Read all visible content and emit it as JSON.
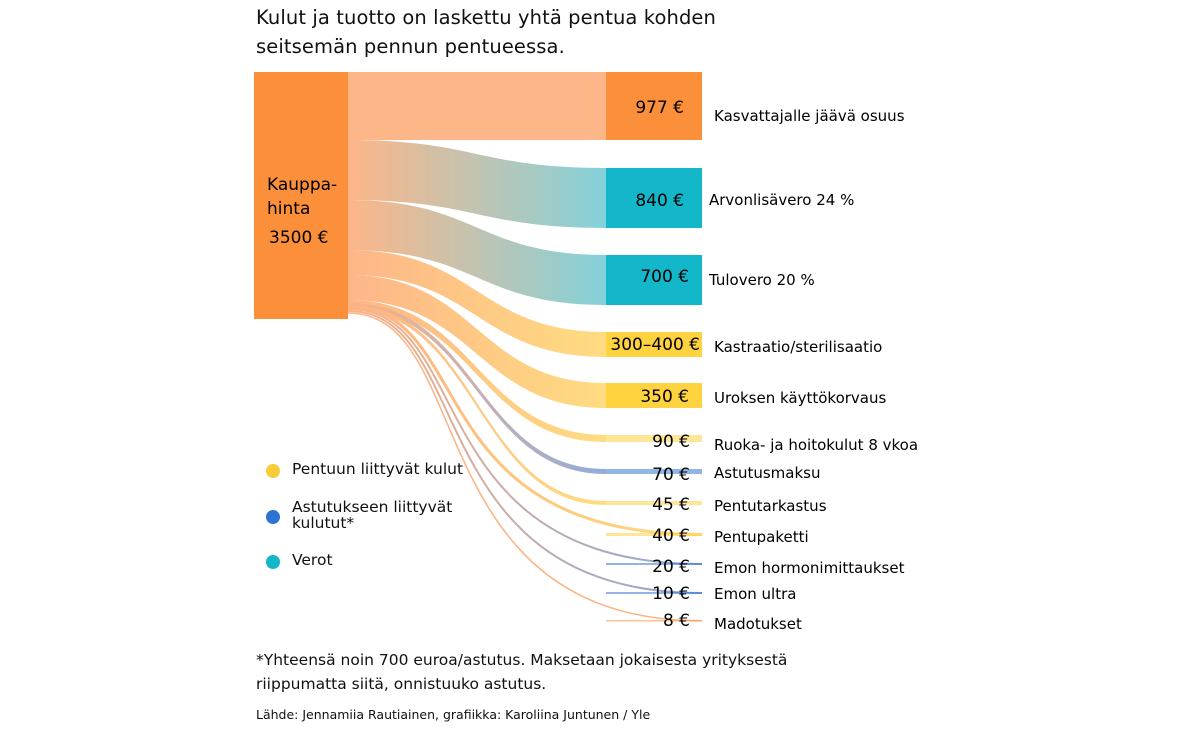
{
  "title": "Kulut ja tuotto on laskettu yhtä pentua kohden seitsemän pennun pentueessa.",
  "chart_data": {
    "type": "sankey",
    "source": {
      "label_line1": "Kauppa-",
      "label_line2": "hinta",
      "value_label": "3500 €",
      "value": 3500
    },
    "flows": [
      {
        "label": "Kasvattajalle jäävä osuus",
        "value_label": "977 €",
        "value": 977,
        "category": "remainder"
      },
      {
        "label": "Arvonlisävero 24 %",
        "value_label": "840 €",
        "value": 840,
        "category": "tax"
      },
      {
        "label": "Tulovero 20 %",
        "value_label": "700 €",
        "value": 700,
        "category": "tax"
      },
      {
        "label": "Kastraatio/sterilisaatio",
        "value_label": "300–400 €",
        "value": 350,
        "category": "puppy"
      },
      {
        "label": "Uroksen käyttökorvaus",
        "value_label": "350 €",
        "value": 350,
        "category": "puppy"
      },
      {
        "label": "Ruoka- ja hoitokulut 8 vkoa",
        "value_label": "90 €",
        "value": 90,
        "category": "puppy"
      },
      {
        "label": "Astutusmaksu",
        "value_label": "70 €",
        "value": 70,
        "category": "breeding"
      },
      {
        "label": "Pentutarkastus",
        "value_label": "45 €",
        "value": 45,
        "category": "puppy"
      },
      {
        "label": "Pentupaketti",
        "value_label": "40 €",
        "value": 40,
        "category": "puppy"
      },
      {
        "label": "Emon hormonimittaukset",
        "value_label": "20 €",
        "value": 20,
        "category": "breeding"
      },
      {
        "label": "Emon ultra",
        "value_label": "10 €",
        "value": 10,
        "category": "breeding"
      },
      {
        "label": "Madotukset",
        "value_label": "8 €",
        "value": 8,
        "category": "remainder"
      }
    ],
    "colors": {
      "source": "#fb8f3a",
      "remainder": "#fb8f3a",
      "tax": "#14b6c9",
      "puppy": "#ffd23f",
      "breeding": "#3a78cf",
      "remainder_flow": "#fdb282",
      "tax_flow": "#7dcfd8",
      "puppy_flow": "#ffda7a",
      "breeding_flow": "#8aa7d8"
    }
  },
  "legend": [
    {
      "label": "Pentuun liittyvät kulut",
      "color": "#f6cc37"
    },
    {
      "label": "Astutukseen liittyvät kulutut*",
      "color": "#2c73d2"
    },
    {
      "label": "Verot",
      "color": "#14b6c9"
    }
  ],
  "footnote": "*Yhteensä noin 700 euroa/astutus. Maksetaan jokaisesta yrityksestä riippumatta siitä, onnistuuko astutus.",
  "source_text": "Lähde: Jennamiia Rautiainen, grafiikka: Karoliina Juntunen / Yle"
}
